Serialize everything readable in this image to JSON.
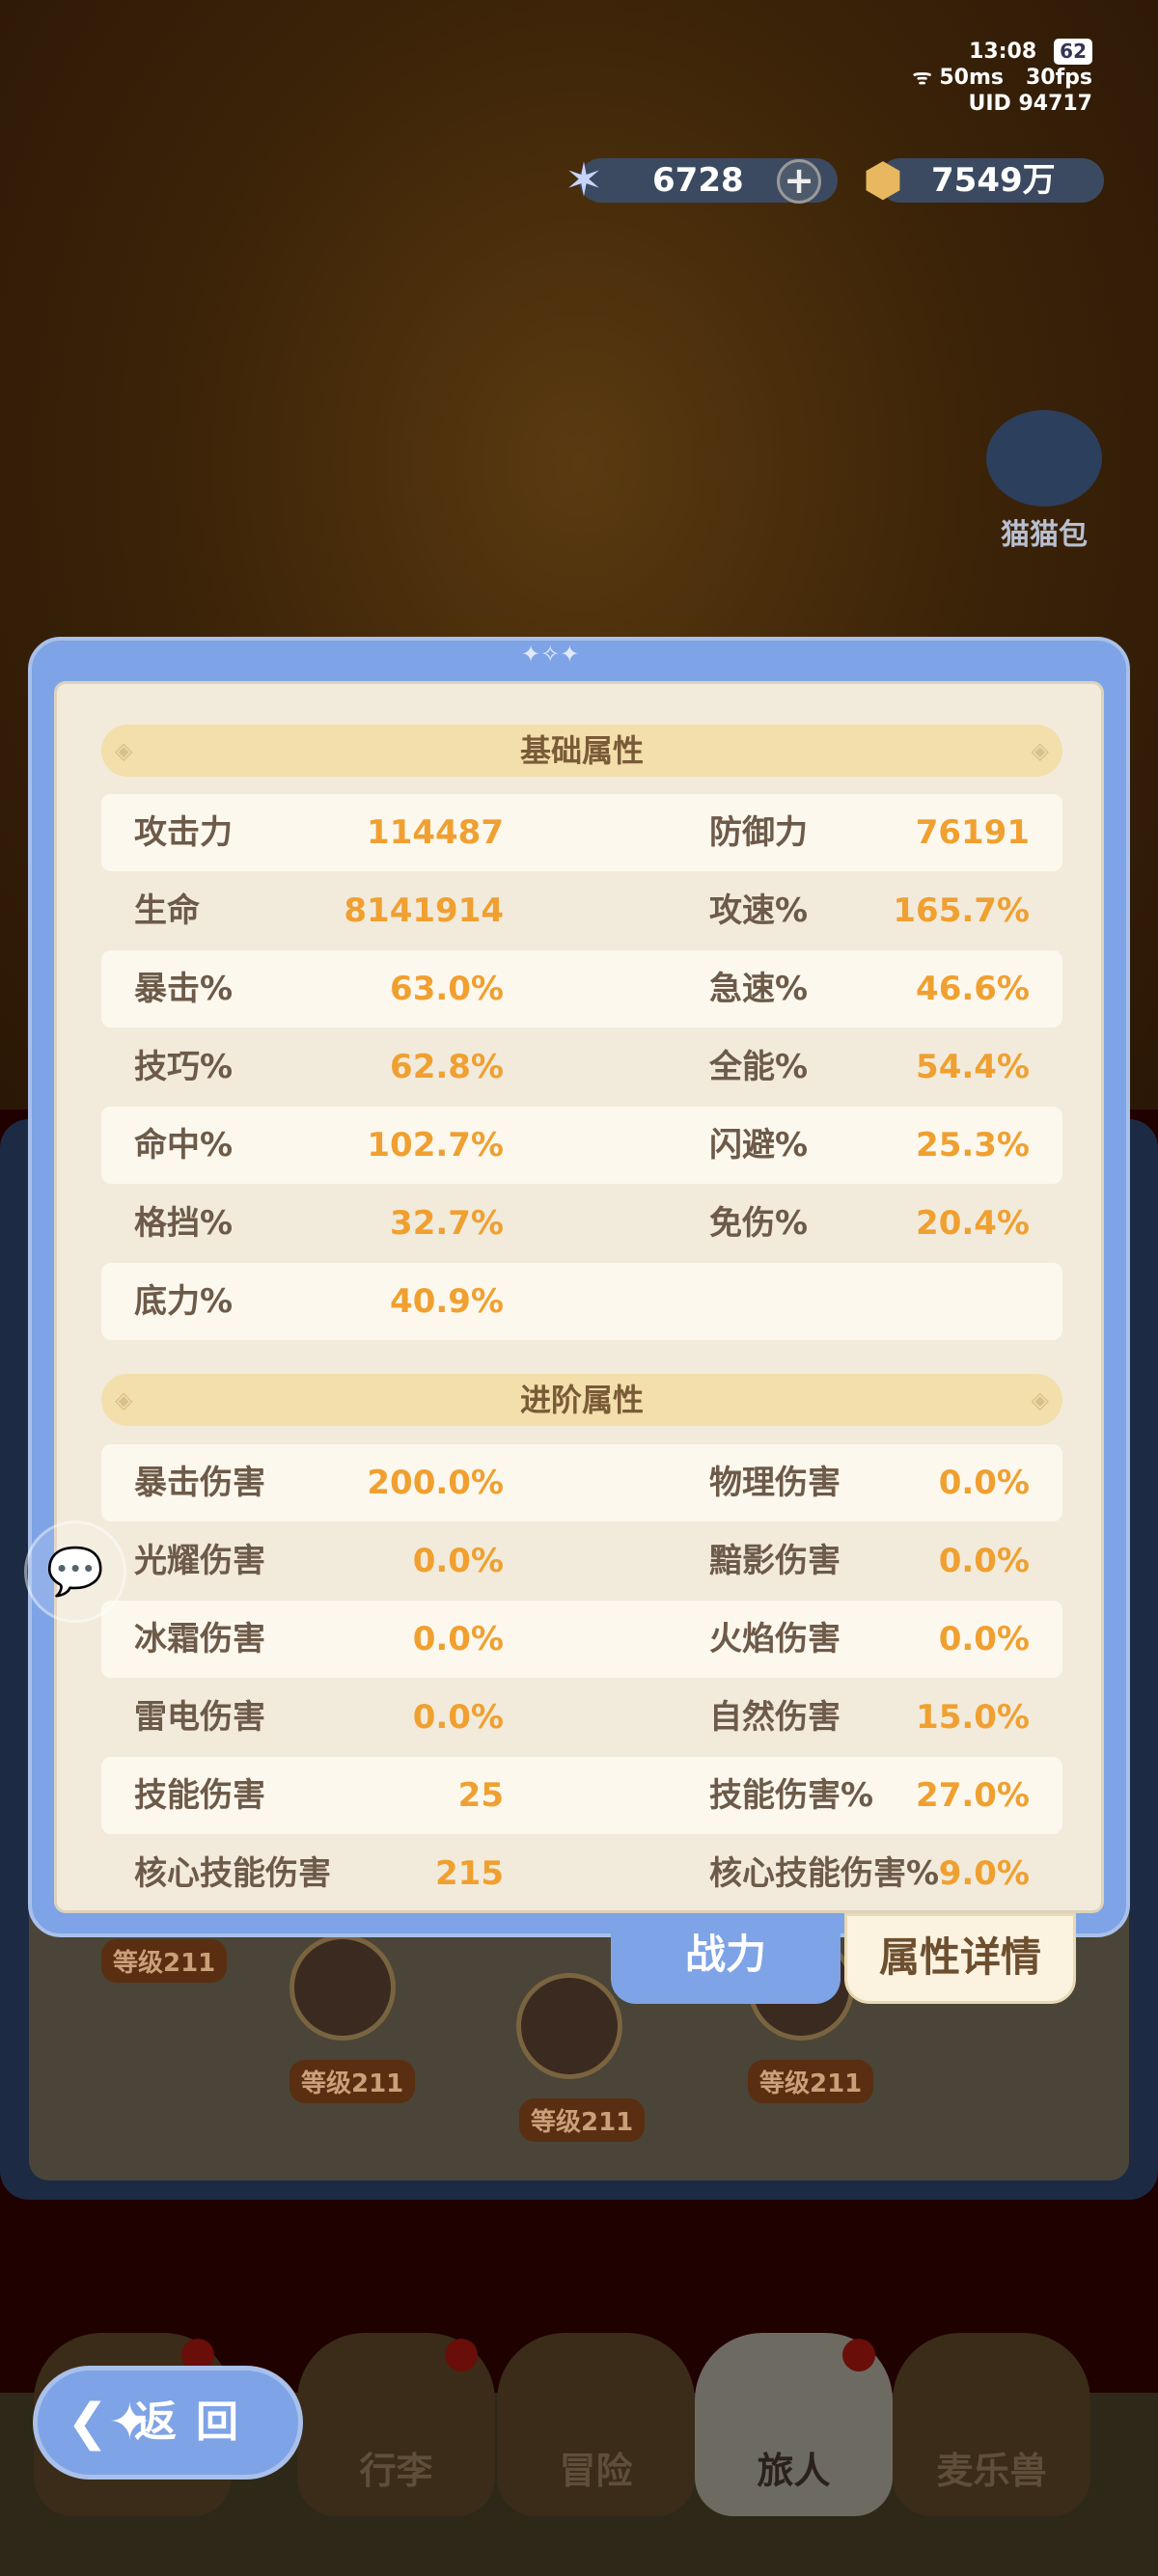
{
  "status": {
    "time": "13:08",
    "battery": "62",
    "ping": "50ms",
    "fps": "30fps",
    "uid": "UID  94717"
  },
  "currency": {
    "crystal": "6728",
    "coin": "7549万",
    "crystal_icon": "crystal-star-icon",
    "coin_icon": "gold-coin-icon"
  },
  "side": {
    "cat_bag": "猫猫包"
  },
  "panel": {
    "basic_title": "基础属性",
    "basic": [
      [
        "攻击力",
        "114487",
        "防御力",
        "76191"
      ],
      [
        "生命",
        "8141914",
        "攻速%",
        "165.7%"
      ],
      [
        "暴击%",
        "63.0%",
        "急速%",
        "46.6%"
      ],
      [
        "技巧%",
        "62.8%",
        "全能%",
        "54.4%"
      ],
      [
        "命中%",
        "102.7%",
        "闪避%",
        "25.3%"
      ],
      [
        "格挡%",
        "32.7%",
        "免伤%",
        "20.4%"
      ],
      [
        "底力%",
        "40.9%",
        "",
        ""
      ]
    ],
    "advanced_title": "进阶属性",
    "advanced": [
      [
        "暴击伤害",
        "200.0%",
        "物理伤害",
        "0.0%"
      ],
      [
        "光耀伤害",
        "0.0%",
        "黯影伤害",
        "0.0%"
      ],
      [
        "冰霜伤害",
        "0.0%",
        "火焰伤害",
        "0.0%"
      ],
      [
        "雷电伤害",
        "0.0%",
        "自然伤害",
        "15.0%"
      ],
      [
        "技能伤害",
        "25",
        "技能伤害%",
        "27.0%"
      ],
      [
        "核心技能伤害",
        "215",
        "核心技能伤害%",
        "9.0%"
      ]
    ]
  },
  "tabs": {
    "power": "战力",
    "details": "属性详情"
  },
  "levels": [
    "等级211",
    "等级211",
    "等级211",
    "等级211"
  ],
  "back": "返回",
  "nav": [
    "行李",
    "冒险",
    "旅人",
    "麦乐兽"
  ],
  "colors": {
    "accent_blue": "#7ea3e6",
    "value_orange": "#f0a030",
    "label_brown": "#6d5a48",
    "section_gold": "#f3dfab"
  }
}
